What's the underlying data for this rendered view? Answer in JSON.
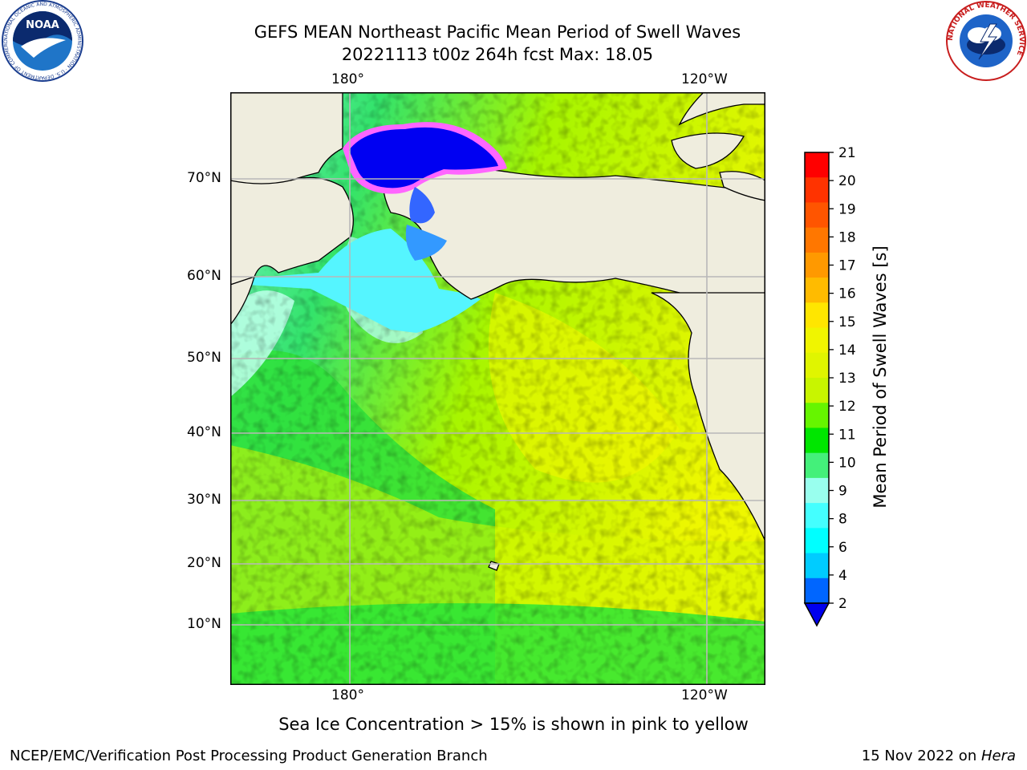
{
  "header": {
    "title_line1": "GEFS MEAN Northeast Pacific Mean Period of Swell Waves",
    "title_line2": "20221113 t00z 264h fcst   Max: 18.05"
  },
  "logos": {
    "left": "NOAA",
    "left_ring_text": "NATIONAL OCEANIC AND ATMOSPHERIC ADMINISTRATION · U.S. DEPARTMENT OF COMMERCE",
    "right_ring_text": "NATIONAL WEATHER SERVICE"
  },
  "map": {
    "lon_labels_top": [
      "180°",
      "120°W"
    ],
    "lon_labels_bottom": [
      "180°",
      "120°W"
    ],
    "lat_labels": [
      "70°N",
      "60°N",
      "50°N",
      "40°N",
      "30°N",
      "20°N",
      "10°N"
    ],
    "land_color": "#efedde",
    "grid_color": "#b8b8b8"
  },
  "colorbar": {
    "label": "Mean Period of Swell Waves [s]",
    "ticks": [
      "21",
      "20",
      "19",
      "18",
      "17",
      "16",
      "15",
      "14",
      "13",
      "12",
      "11",
      "10",
      "9",
      "8",
      "6",
      "4",
      "2"
    ],
    "colors_top_to_bottom": [
      "#ff0000",
      "#ff3300",
      "#ff5500",
      "#ff7700",
      "#ff9900",
      "#ffbb00",
      "#ffe600",
      "#f0f500",
      "#e0f500",
      "#c8f500",
      "#66f500",
      "#00e600",
      "#44f07a",
      "#99ffee",
      "#44ffff",
      "#00ffff",
      "#00ccff",
      "#0066ff"
    ],
    "extend_color": "#0000ee"
  },
  "note": "Sea Ice Concentration > 15% is shown in pink to yellow",
  "footer": {
    "left": "NCEP/EMC/Verification Post Processing Product Generation Branch",
    "date": "15 Nov 2022 on ",
    "machine": "Hera"
  }
}
